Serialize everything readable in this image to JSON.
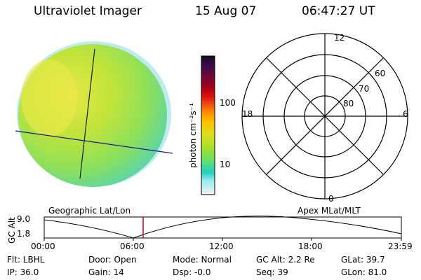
{
  "header": {
    "instrument": "Ultraviolet Imager",
    "date": "15 Aug 07",
    "time": "06:47:27 UT"
  },
  "colorbar": {
    "unit_label": "photon cm⁻²s⁻¹",
    "ticks": [
      "100",
      "10"
    ],
    "colors": [
      "#1a0a2e",
      "#3a0a4a",
      "#6a0a3a",
      "#a0001a",
      "#d40010",
      "#f03010",
      "#ff8000",
      "#ffb000",
      "#e0d820",
      "#b0e020",
      "#80e040",
      "#40e080",
      "#20d0d0",
      "#a0e8f0",
      "#e0f0f0"
    ]
  },
  "polar_plot": {
    "labels": {
      "top": "12",
      "left": "18",
      "right": "6",
      "bottom": "0"
    },
    "rings": [
      "60",
      "70",
      "80"
    ]
  },
  "coords": {
    "left_label": "Geographic Lat/Lon",
    "right_label": "Apex MLat/MLT"
  },
  "altitude_plot": {
    "axis_title": "GC Alt",
    "y_ticks": [
      "9.0",
      "1.8"
    ],
    "x_ticks": [
      "00:00",
      "06:00",
      "12:00",
      "18:00",
      "23:59"
    ],
    "marker_time": "06:47",
    "marker_color": "#cc0000"
  },
  "info": {
    "flt": "Flt: LBHL",
    "ip": "IP: 36.0",
    "door": "Door: Open",
    "gain": "Gain: 14",
    "mode": "Mode: Normal",
    "dsp": "Dsp:   -0.0",
    "gcalt": "GC Alt: 2.2 Re",
    "seq": "Seq: 39",
    "glat": "GLat:  39.7",
    "glon": "GLon:  81.0"
  }
}
